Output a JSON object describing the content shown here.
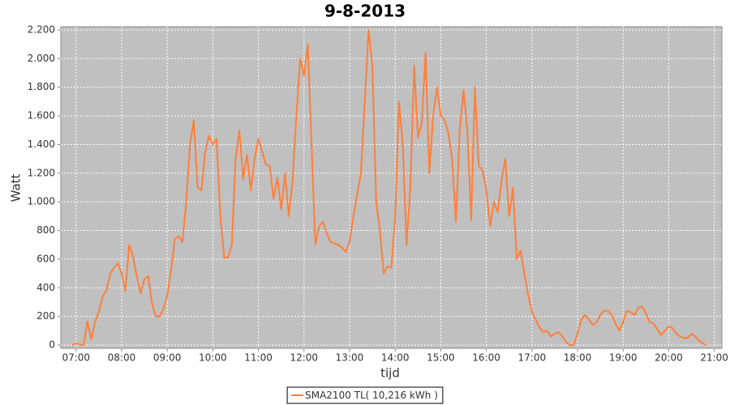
{
  "chart_data": {
    "type": "line",
    "title": "9-8-2013",
    "x_label": "tijd",
    "y_label": "Watt",
    "x": [
      "06:55",
      "07:00",
      "07:05",
      "07:10",
      "07:15",
      "07:20",
      "07:25",
      "07:30",
      "07:35",
      "07:40",
      "07:45",
      "07:50",
      "07:55",
      "08:00",
      "08:05",
      "08:10",
      "08:15",
      "08:20",
      "08:25",
      "08:30",
      "08:35",
      "08:40",
      "08:45",
      "08:50",
      "08:55",
      "09:00",
      "09:05",
      "09:10",
      "09:15",
      "09:20",
      "09:25",
      "09:30",
      "09:35",
      "09:40",
      "09:45",
      "09:50",
      "09:55",
      "10:00",
      "10:05",
      "10:10",
      "10:15",
      "10:20",
      "10:25",
      "10:30",
      "10:35",
      "10:40",
      "10:45",
      "10:50",
      "10:55",
      "11:00",
      "11:05",
      "11:10",
      "11:15",
      "11:20",
      "11:25",
      "11:30",
      "11:35",
      "11:40",
      "11:45",
      "11:50",
      "11:55",
      "12:00",
      "12:05",
      "12:10",
      "12:15",
      "12:20",
      "12:25",
      "12:30",
      "12:35",
      "12:40",
      "12:45",
      "12:50",
      "12:55",
      "13:00",
      "13:05",
      "13:10",
      "13:15",
      "13:20",
      "13:25",
      "13:30",
      "13:35",
      "13:40",
      "13:45",
      "13:50",
      "13:55",
      "14:00",
      "14:05",
      "14:10",
      "14:15",
      "14:20",
      "14:25",
      "14:30",
      "14:35",
      "14:40",
      "14:45",
      "14:50",
      "14:55",
      "15:00",
      "15:05",
      "15:10",
      "15:15",
      "15:20",
      "15:25",
      "15:30",
      "15:35",
      "15:40",
      "15:45",
      "15:50",
      "15:55",
      "16:00",
      "16:05",
      "16:10",
      "16:15",
      "16:20",
      "16:25",
      "16:30",
      "16:35",
      "16:40",
      "16:45",
      "16:50",
      "16:55",
      "17:00",
      "17:05",
      "17:10",
      "17:15",
      "17:20",
      "17:25",
      "17:30",
      "17:35",
      "17:40",
      "17:45",
      "17:50",
      "17:55",
      "18:00",
      "18:05",
      "18:10",
      "18:15",
      "18:20",
      "18:25",
      "18:30",
      "18:35",
      "18:40",
      "18:45",
      "18:50",
      "18:55",
      "19:00",
      "19:05",
      "19:10",
      "19:15",
      "19:20",
      "19:25",
      "19:30",
      "19:35",
      "19:40",
      "19:45",
      "19:50",
      "19:55",
      "20:00",
      "20:05",
      "20:10",
      "20:15",
      "20:20",
      "20:25",
      "20:30",
      "20:35",
      "20:40",
      "20:45",
      "20:50"
    ],
    "series": [
      {
        "name": "SMA2100 TL( 10,216 kWh )",
        "color": "#ff7f3a",
        "values": [
          0,
          10,
          5,
          0,
          165,
          40,
          160,
          230,
          340,
          380,
          500,
          540,
          570,
          500,
          380,
          700,
          620,
          480,
          360,
          460,
          480,
          290,
          200,
          200,
          250,
          340,
          520,
          740,
          760,
          720,
          1000,
          1400,
          1570,
          1100,
          1080,
          1350,
          1460,
          1400,
          1440,
          900,
          610,
          610,
          700,
          1300,
          1500,
          1160,
          1330,
          1080,
          1300,
          1440,
          1350,
          1260,
          1250,
          1020,
          1170,
          950,
          1200,
          900,
          1150,
          1600,
          2000,
          1880,
          2100,
          1400,
          700,
          830,
          860,
          780,
          720,
          710,
          700,
          680,
          650,
          720,
          900,
          1050,
          1200,
          1700,
          2200,
          1950,
          1000,
          800,
          500,
          550,
          540,
          900,
          1700,
          1400,
          700,
          1100,
          1950,
          1450,
          1550,
          2040,
          1200,
          1600,
          1800,
          1600,
          1570,
          1480,
          1300,
          860,
          1500,
          1780,
          1500,
          870,
          1800,
          1250,
          1220,
          1080,
          830,
          1000,
          930,
          1150,
          1300,
          900,
          1100,
          600,
          660,
          500,
          350,
          230,
          180,
          120,
          90,
          100,
          60,
          80,
          90,
          60,
          20,
          0,
          0,
          80,
          180,
          210,
          180,
          140,
          160,
          210,
          240,
          240,
          210,
          150,
          100,
          160,
          240,
          230,
          210,
          260,
          270,
          220,
          160,
          150,
          110,
          70,
          100,
          130,
          120,
          80,
          60,
          50,
          50,
          80,
          60,
          30,
          10,
          0
        ]
      }
    ],
    "xlim": [
      "06:40",
      "21:10"
    ],
    "xticks": [
      "07:00",
      "08:00",
      "09:00",
      "10:00",
      "11:00",
      "12:00",
      "13:00",
      "14:00",
      "15:00",
      "16:00",
      "17:00",
      "18:00",
      "19:00",
      "20:00",
      "21:00"
    ],
    "ylim": [
      0,
      2200
    ],
    "yticks": [
      0,
      200,
      400,
      600,
      800,
      {
        "value": 1000,
        "label": "1.000"
      },
      {
        "value": 1200,
        "label": "1.200"
      },
      {
        "value": 1400,
        "label": "1.400"
      },
      {
        "value": 1600,
        "label": "1.600"
      },
      {
        "value": 1800,
        "label": "1.800"
      },
      {
        "value": 2000,
        "label": "2.000"
      },
      {
        "value": 2200,
        "label": "2.200"
      }
    ],
    "grid": true,
    "legend": "bottom"
  }
}
